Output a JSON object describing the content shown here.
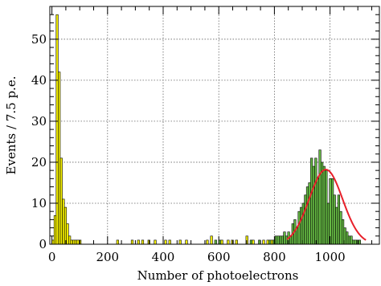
{
  "chart_data": {
    "type": "histogram",
    "title": "",
    "xlabel": "Number of photoelectrons",
    "ylabel": "Events / 7.5 p.e.",
    "xlim": [
      -7.5,
      1177.5
    ],
    "ylim": [
      0,
      58
    ],
    "bin_width": 7.5,
    "x_ticks": [
      0,
      200,
      400,
      600,
      800,
      1000
    ],
    "y_ticks": [
      0,
      10,
      20,
      30,
      40,
      50
    ],
    "grid": true,
    "series": [
      {
        "bin_starts": [
          0,
          7.5,
          15,
          22.5,
          30,
          37.5,
          45,
          52.5,
          60,
          67.5,
          75,
          82.5,
          90,
          97.5,
          232.5,
          285,
          307.5,
          322.5,
          345,
          367.5,
          405,
          420,
          457.5,
          480,
          555,
          570,
          607.5,
          630,
          645,
          660,
          697.5,
          720,
          757.5,
          772.5,
          787.5
        ],
        "counts": [
          1,
          7,
          56,
          42,
          21,
          11,
          9,
          5,
          2,
          1,
          1,
          1,
          1,
          1,
          1,
          1,
          1,
          1,
          1,
          1,
          1,
          1,
          1,
          1,
          1,
          2,
          1,
          1,
          1,
          1,
          2,
          1,
          1,
          1,
          1
        ],
        "color": "#f5f000"
      },
      {
        "bin_starts": [
          585,
          600,
          712.5,
          742.5,
          780,
          795,
          802.5,
          810,
          817.5,
          825,
          832.5,
          840,
          847.5,
          855,
          862.5,
          870,
          877.5,
          885,
          892.5,
          900,
          907.5,
          915,
          922.5,
          930,
          937.5,
          945,
          952.5,
          960,
          967.5,
          975,
          982.5,
          990,
          997.5,
          1005,
          1012.5,
          1020,
          1027.5,
          1035,
          1042.5,
          1050,
          1057.5,
          1065,
          1072.5,
          1080,
          1087.5,
          1095,
          1102.5
        ],
        "counts": [
          1,
          1,
          1,
          1,
          1,
          1,
          2,
          2,
          2,
          2,
          3,
          2,
          3,
          2,
          5,
          6,
          4,
          8,
          9,
          10,
          12,
          14,
          15,
          21,
          19,
          21,
          16,
          23,
          20,
          19,
          18,
          10,
          16,
          16,
          12,
          9,
          12,
          8,
          6,
          4,
          3,
          2,
          2,
          1,
          1,
          1,
          1
        ],
        "color": "#66bb44"
      }
    ],
    "fit": {
      "function": "gaussian",
      "amplitude": 18.2,
      "mean": 985,
      "sigma": 60,
      "range": [
        845,
        1130
      ],
      "color": "#e8202a"
    }
  }
}
